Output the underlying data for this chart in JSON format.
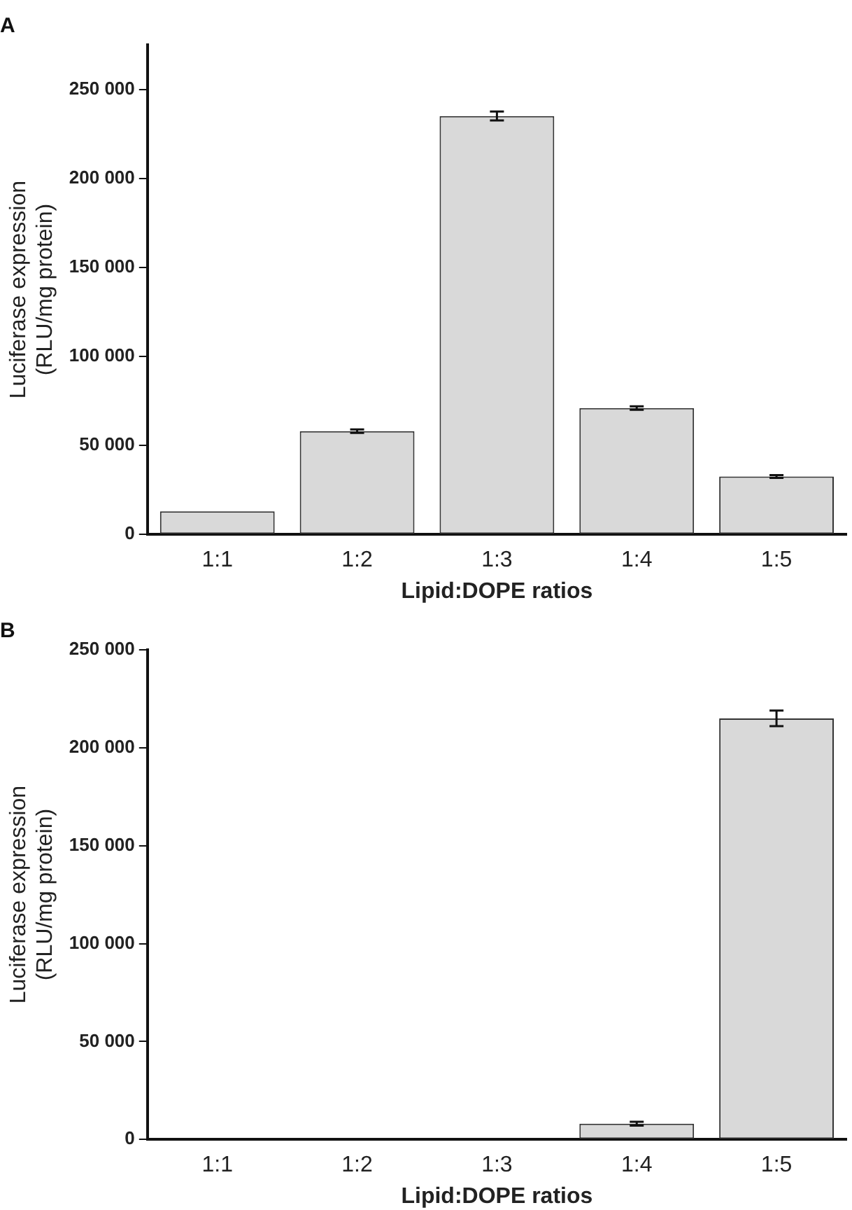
{
  "chart_data": [
    {
      "type": "bar",
      "title": "A",
      "xlabel": "Lipid:DOPE ratios",
      "ylabel": "Luciferase expression\n(RLU/mg protein)",
      "categories": [
        "1:1",
        "1:2",
        "1:3",
        "1:4",
        "1:5"
      ],
      "values": [
        13000,
        58000,
        235000,
        71000,
        32500
      ],
      "errors": [
        null,
        1000,
        2500,
        1000,
        800
      ],
      "color": "#d9d9d9",
      "ylim": [
        0,
        275000
      ],
      "yticks": [
        {
          "value": 0,
          "label": "0"
        },
        {
          "value": 50000,
          "label": "50 000"
        },
        {
          "value": 100000,
          "label": "100 000"
        },
        {
          "value": 150000,
          "label": "150 000"
        },
        {
          "value": 200000,
          "label": "200 000"
        },
        {
          "value": 250000,
          "label": "250 000"
        }
      ],
      "grid": false,
      "legend": false
    },
    {
      "type": "bar",
      "title": "B",
      "xlabel": "Lipid:DOPE ratios",
      "ylabel": "Luciferase expression\n(RLU/mg protein)",
      "categories": [
        "1:1",
        "1:2",
        "1:3",
        "1:4",
        "1:5"
      ],
      "values": [
        300,
        500,
        400,
        8000,
        215000
      ],
      "errors": [
        null,
        null,
        null,
        1000,
        4000
      ],
      "colors": [
        "#333333",
        "#333333",
        "#333333",
        "#d9d9d9",
        "#d9d9d9"
      ],
      "ylim": [
        0,
        250000
      ],
      "yticks": [
        {
          "value": 0,
          "label": "0"
        },
        {
          "value": 50000,
          "label": "50 000"
        },
        {
          "value": 100000,
          "label": "100 000"
        },
        {
          "value": 150000,
          "label": "150 000"
        },
        {
          "value": 200000,
          "label": "200 000"
        },
        {
          "value": 250000,
          "label": "250 000"
        }
      ],
      "grid": false,
      "legend": false
    }
  ]
}
